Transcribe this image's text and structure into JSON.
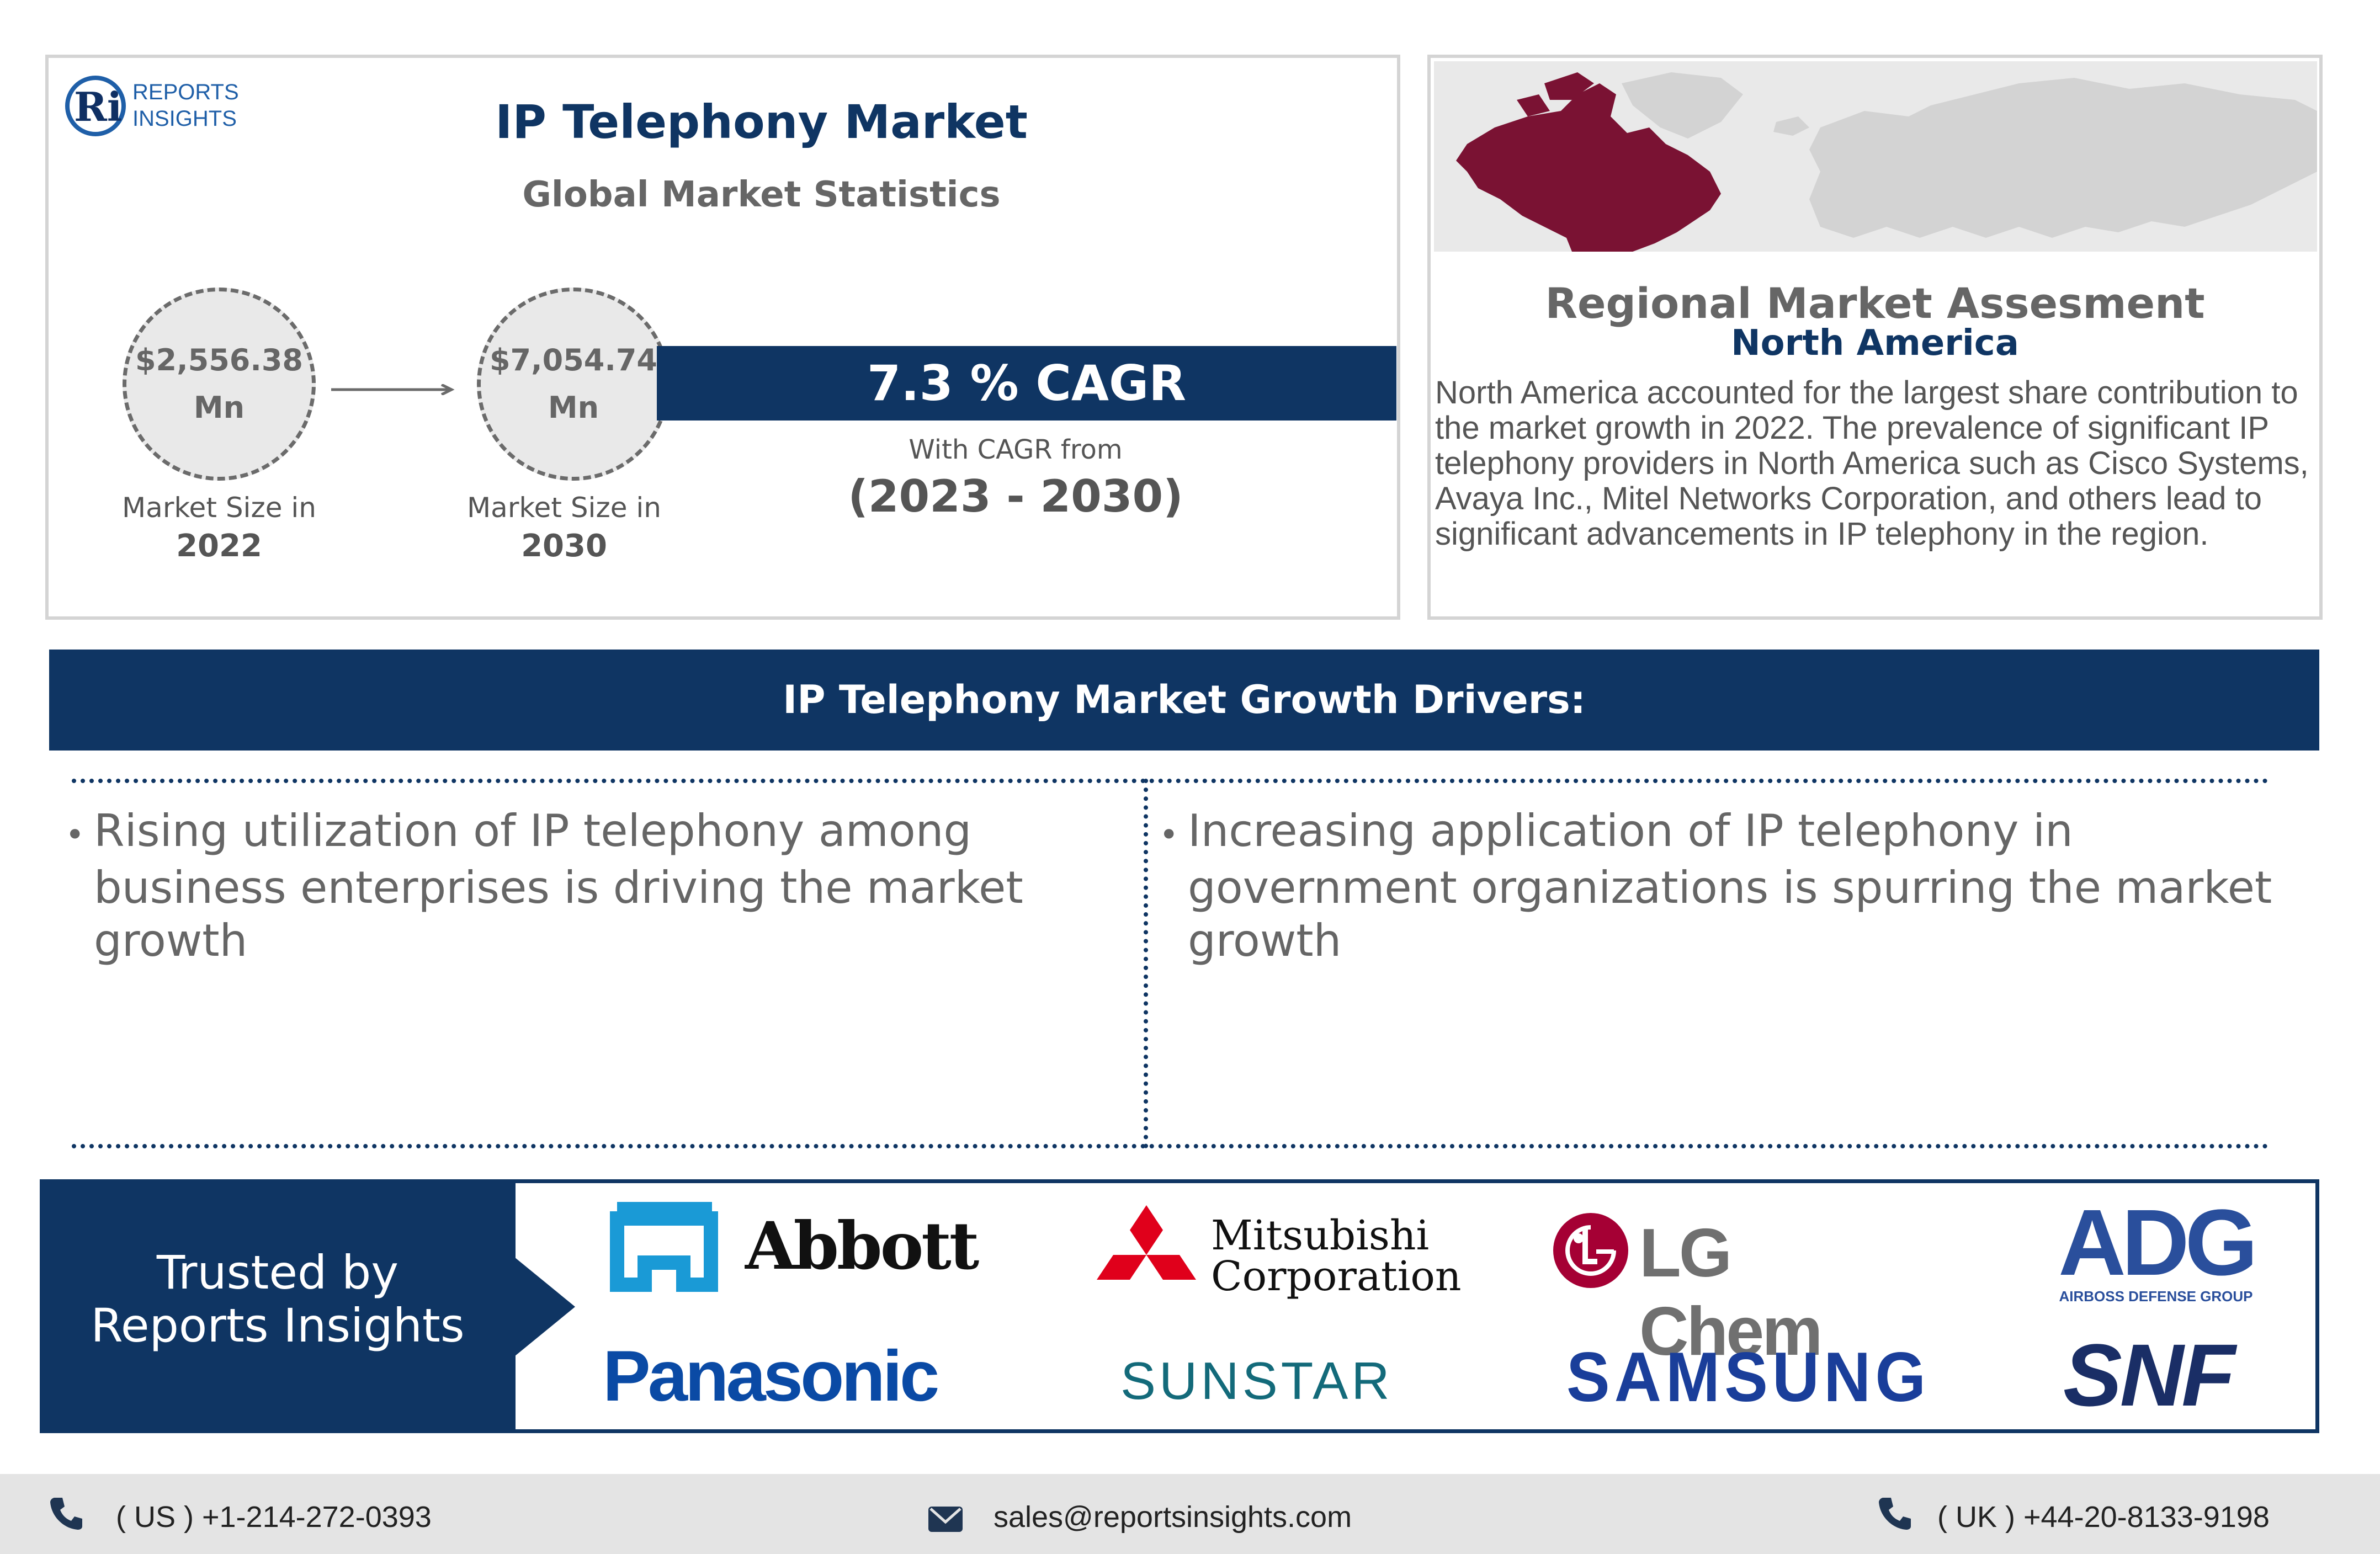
{
  "brand": {
    "logo_line1": "REPORTS",
    "logo_line2": "INSIGHTS",
    "logo_mark": "Ri"
  },
  "stats": {
    "title": "IP Telephony Market",
    "subtitle": "Global Market Statistics",
    "start_value": "$2,556.38",
    "start_unit": "Mn",
    "start_label": "Market Size in",
    "start_year": "2022",
    "end_value": "$7,054.74",
    "end_unit": "Mn",
    "end_label": "Market Size in",
    "end_year": "2030",
    "cagr": "7.3 % CAGR",
    "cagr_from": "With CAGR from",
    "cagr_period": "(2023 - 2030)"
  },
  "region": {
    "title": "Regional Market Assesment",
    "name": "North America",
    "body": "North America accounted for the largest share contribution to the market growth in 2022. The prevalence of significant IP telephony providers in North America such as Cisco Systems, Avaya Inc., Mitel Networks Corporation, and others lead to significant advancements in IP telephony in the region.",
    "highlight_color": "#7a1233",
    "map_color": "#d3d3d3"
  },
  "drivers": {
    "title": "IP Telephony Market Growth Drivers:",
    "bullet": "•",
    "items": [
      "Rising utilization of IP telephony among business enterprises is driving the market growth",
      "Increasing application of IP telephony in government organizations is spurring the market growth"
    ]
  },
  "trusted": {
    "line1": "Trusted by",
    "line2": "Reports Insights",
    "logos": {
      "abbott": "Abbott",
      "mitsubishi_line1": "Mitsubishi",
      "mitsubishi_line2": "Corporation",
      "lg_chem": "LG Chem",
      "adg": "ADG",
      "adg_sub": "AIRBOSS DEFENSE GROUP",
      "panasonic": "Panasonic",
      "sunstar": "SUNSTAR",
      "samsung": "SAMSUNG",
      "snf": "SNF"
    }
  },
  "footer": {
    "us_phone": "( US ) +1-214-272-0393",
    "email": "sales@reportsinsights.com",
    "uk_phone": "( UK ) +44-20-8133-9198"
  },
  "colors": {
    "navy": "#0f3563",
    "text_gray": "#555555",
    "border_gray": "#d4d4d4"
  }
}
